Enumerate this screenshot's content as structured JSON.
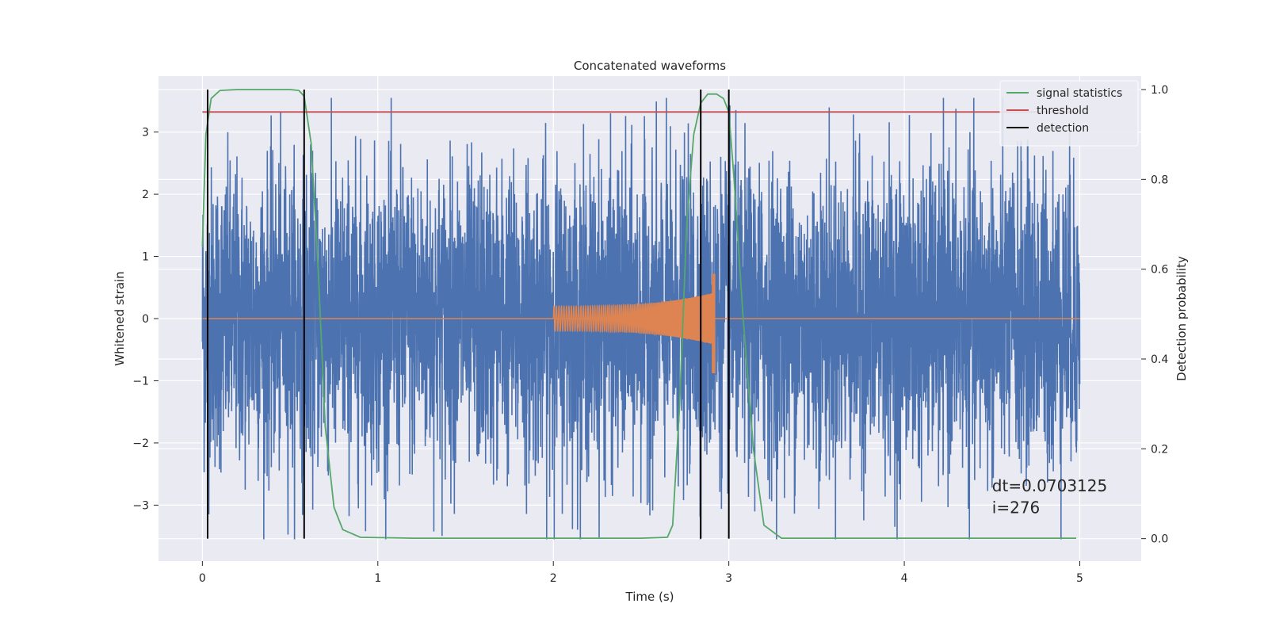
{
  "chart_data": {
    "type": "line",
    "title": "Concatenated waveforms",
    "xlabel": "Time (s)",
    "ylabel": "Whitened strain",
    "ylabel_right": "Detection probability",
    "xlim": [
      -0.25,
      5.35
    ],
    "ylim": [
      -3.9,
      3.9
    ],
    "ylim_right": [
      -0.05,
      1.03
    ],
    "xticks": [
      0,
      1,
      2,
      3,
      4,
      5
    ],
    "yticks": [
      -3,
      -2,
      -1,
      0,
      1,
      2,
      3
    ],
    "yticks_right": [
      0.0,
      0.2,
      0.4,
      0.6,
      0.8,
      1.0
    ],
    "yticks_right_labels": [
      "0.0",
      "0.2",
      "0.4",
      "0.6",
      "0.8",
      "1.0"
    ],
    "grid": true,
    "legend_position": "top-right",
    "series": [
      {
        "name": "",
        "axis": "left",
        "kind": "noise",
        "color": "#4c72b0",
        "x_range": [
          0,
          5
        ],
        "typical_amplitude": 1.6,
        "peak_amplitude": 3.55
      },
      {
        "name": "",
        "axis": "left",
        "kind": "chirp",
        "color": "#dd8452",
        "x_range": [
          2.0,
          2.92
        ],
        "start_amplitude": 0.2,
        "end_positive_peak": 0.72,
        "end_negative_peak": -0.88,
        "baseline_x_range": [
          0,
          5
        ],
        "baseline_value": 0
      },
      {
        "name": "signal statistics",
        "axis": "right",
        "color": "#55a868",
        "x": [
          0.0,
          0.02,
          0.05,
          0.1,
          0.2,
          0.5,
          0.55,
          0.58,
          0.62,
          0.66,
          0.7,
          0.75,
          0.8,
          0.9,
          1.2,
          2.5,
          2.65,
          2.68,
          2.72,
          2.76,
          2.8,
          2.84,
          2.88,
          2.93,
          2.97,
          3.0,
          3.03,
          3.08,
          3.14,
          3.2,
          3.3,
          4.98
        ],
        "values": [
          0.65,
          0.9,
          0.98,
          0.998,
          1.0,
          1.0,
          0.998,
          0.985,
          0.88,
          0.6,
          0.25,
          0.07,
          0.02,
          0.003,
          0.001,
          0.001,
          0.003,
          0.03,
          0.3,
          0.7,
          0.9,
          0.97,
          0.99,
          0.99,
          0.98,
          0.95,
          0.8,
          0.5,
          0.2,
          0.03,
          0.001,
          0.001
        ]
      },
      {
        "name": "threshold",
        "axis": "right",
        "color": "#c44e52",
        "x": [
          0.0,
          4.98
        ],
        "values": [
          0.95,
          0.95
        ]
      },
      {
        "name": "detection",
        "axis": "right",
        "color": "#000000",
        "type": "vlines",
        "x": [
          0.03,
          0.58,
          2.84,
          3.0
        ],
        "ymin": 0.0,
        "ymax": 1.0
      }
    ],
    "annotations": [
      {
        "text": "dt=0.0703125",
        "x": 4.5,
        "y": -2.78,
        "axis": "left"
      },
      {
        "text": " i=276",
        "x": 4.5,
        "y": -3.13,
        "axis": "left"
      }
    ]
  }
}
